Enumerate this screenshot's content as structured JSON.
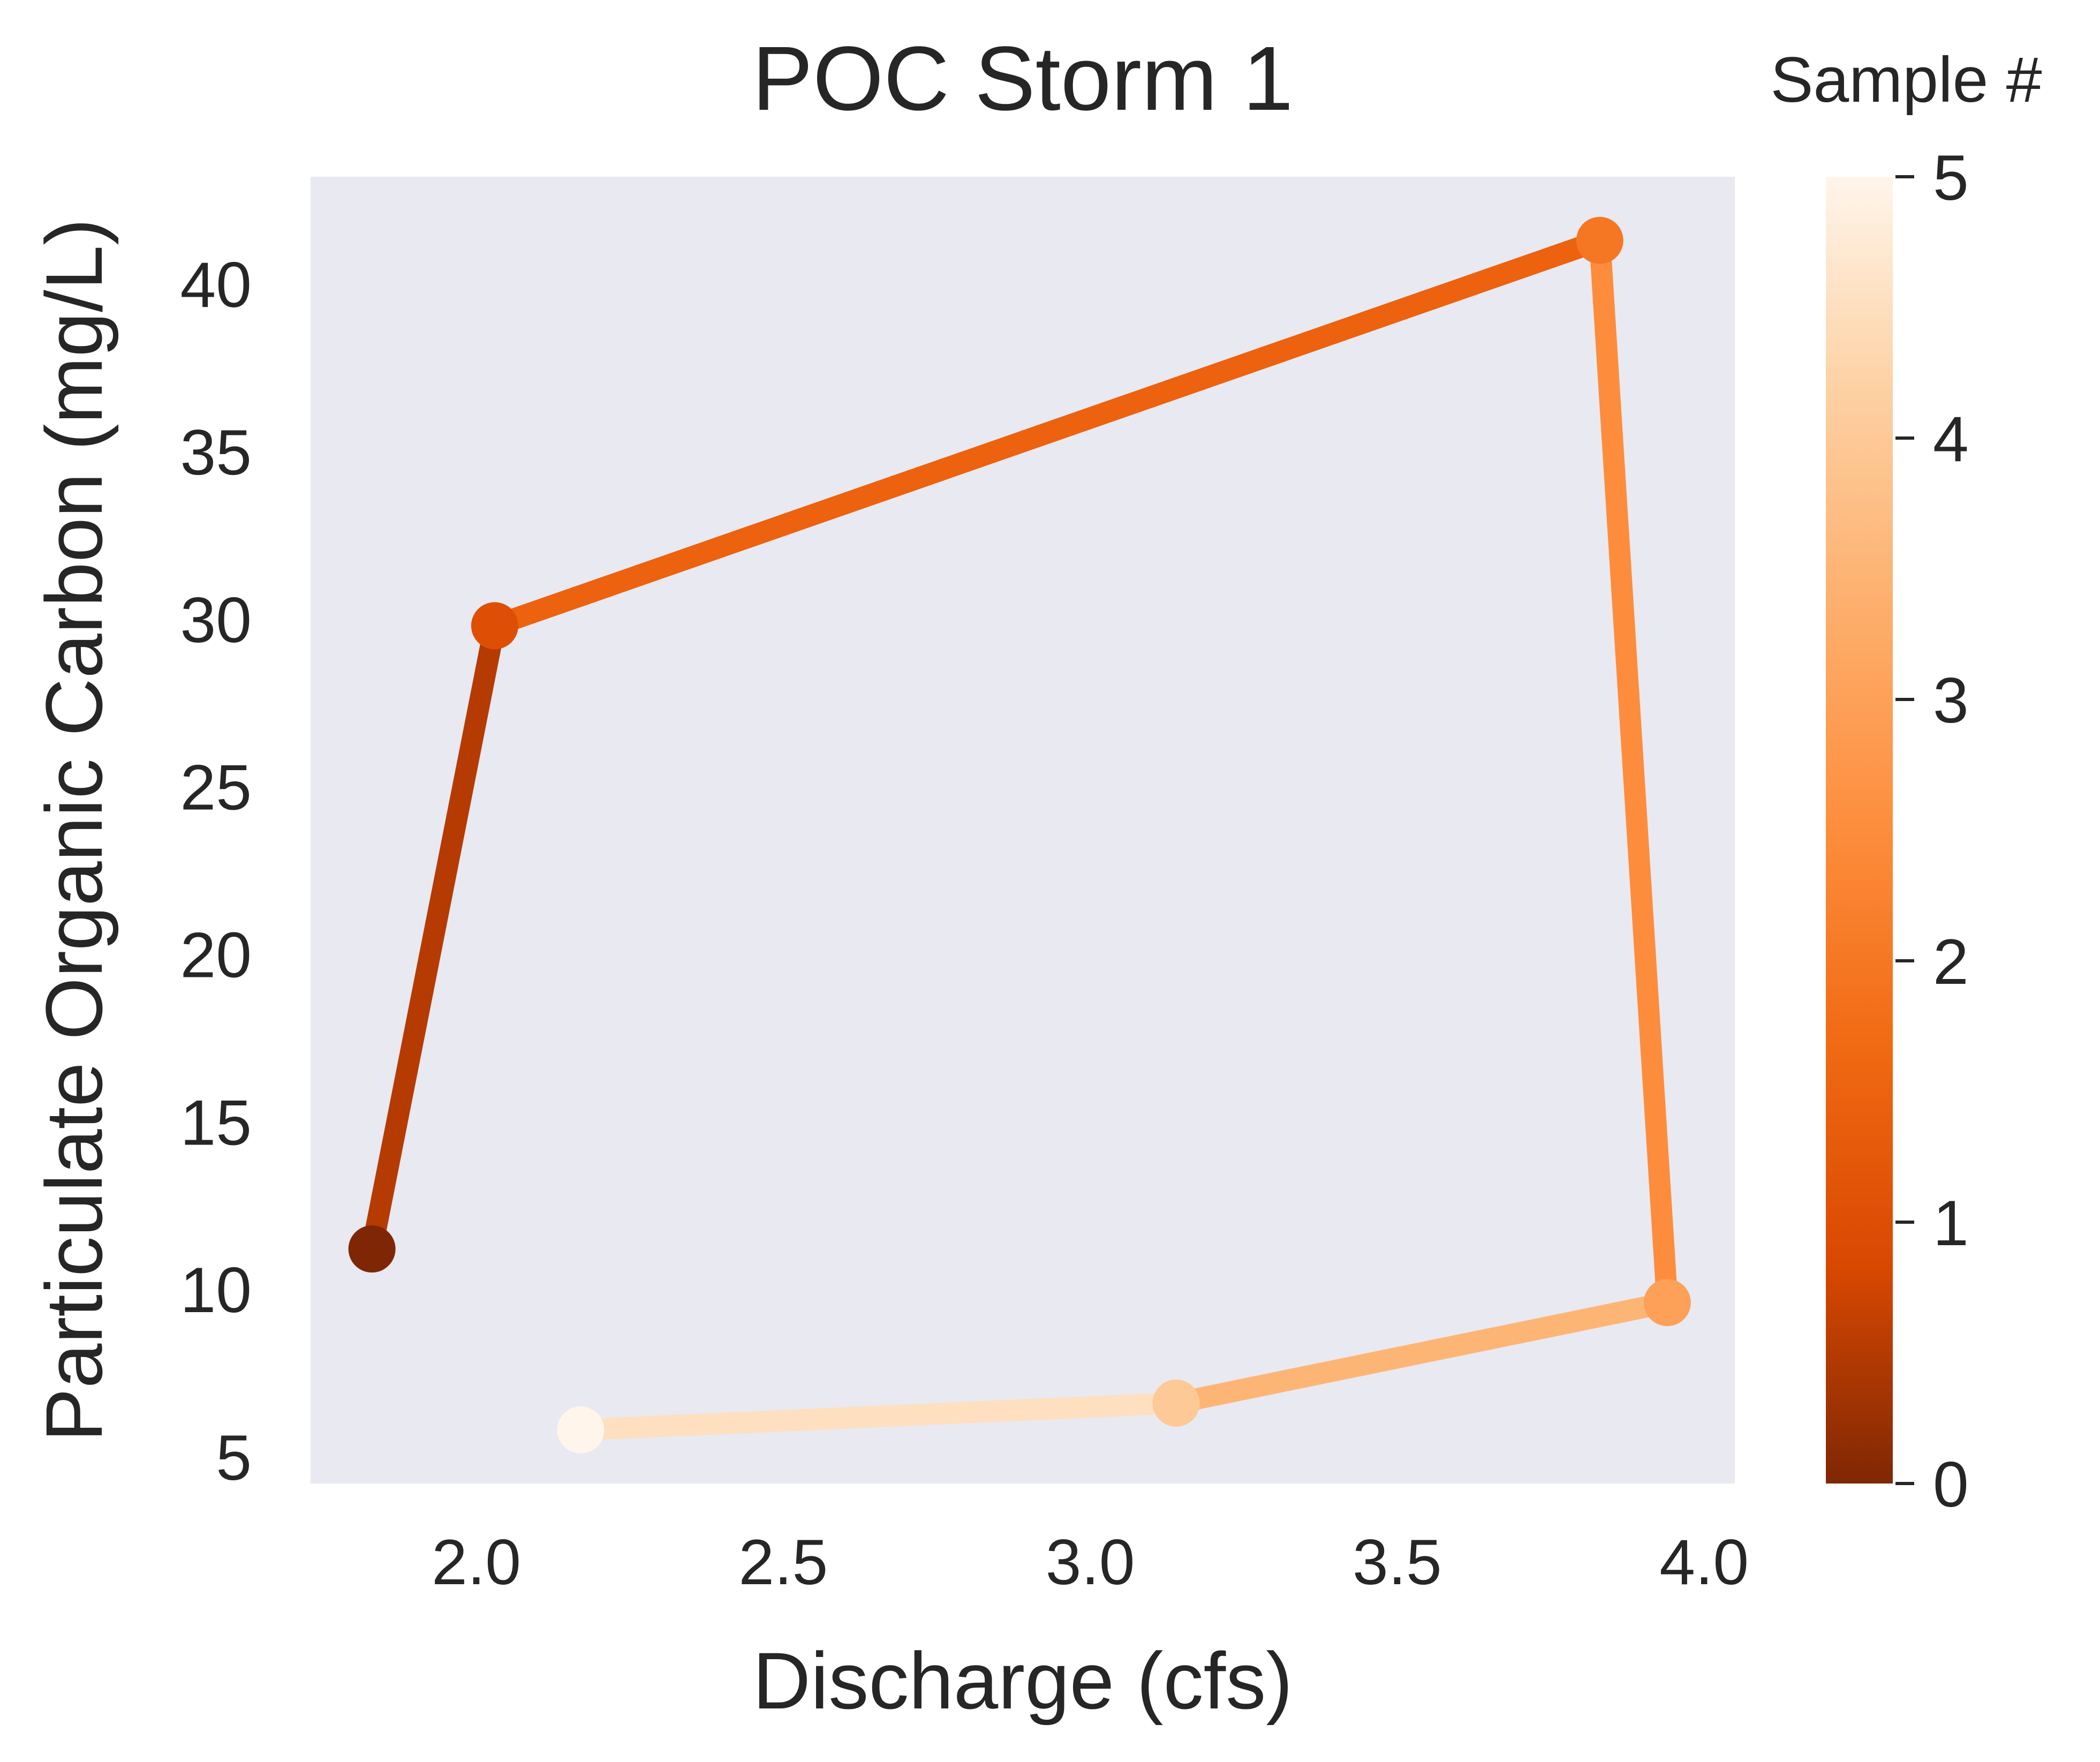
{
  "chart_data": {
    "type": "line",
    "title": "POC Storm 1",
    "xlabel": "Discharge (cfs)",
    "ylabel": "Particulate Organic Carbon (mg/L)",
    "xlim": [
      1.73,
      4.05
    ],
    "ylim": [
      4.2,
      43.2
    ],
    "xticks": [
      2.0,
      2.5,
      3.0,
      3.5,
      4.0
    ],
    "xtick_labels": [
      "2.0",
      "2.5",
      "3.0",
      "3.5",
      "4.0"
    ],
    "yticks": [
      5,
      10,
      15,
      20,
      25,
      30,
      35,
      40
    ],
    "ytick_labels": [
      "5",
      "10",
      "15",
      "20",
      "25",
      "30",
      "35",
      "40"
    ],
    "grid": false,
    "background": "#e9e9f1",
    "colormap": "Oranges_r",
    "points": [
      {
        "sample": 0,
        "x": 1.83,
        "y": 11.2
      },
      {
        "sample": 1,
        "x": 2.03,
        "y": 29.8
      },
      {
        "sample": 2,
        "x": 3.83,
        "y": 41.3
      },
      {
        "sample": 3,
        "x": 3.94,
        "y": 9.6
      },
      {
        "sample": 4,
        "x": 3.14,
        "y": 6.6
      },
      {
        "sample": 5,
        "x": 2.17,
        "y": 5.8
      }
    ],
    "colorbar": {
      "label": "Sample #",
      "range": [
        0,
        5
      ],
      "ticks": [
        0,
        1,
        2,
        3,
        4,
        5
      ],
      "tick_labels": [
        "0",
        "1",
        "2",
        "3",
        "4",
        "5"
      ],
      "stops": [
        "#7f2704",
        "#d94801",
        "#f16913",
        "#fd8d3c",
        "#fdae6b",
        "#fdd0a2",
        "#fff5eb"
      ]
    }
  }
}
